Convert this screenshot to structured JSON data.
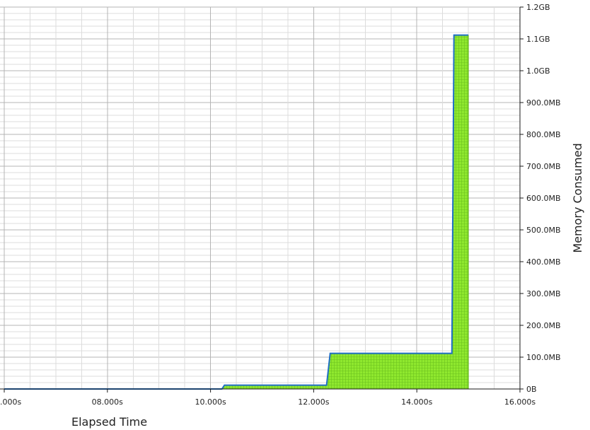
{
  "chart_data": {
    "type": "area",
    "xlabel": "Elapsed Time",
    "ylabel": "Memory Consumed",
    "x_ticks": [
      {
        "value": 6,
        "label": ".000s"
      },
      {
        "value": 8,
        "label": "08.000s"
      },
      {
        "value": 10,
        "label": "10.000s"
      },
      {
        "value": 12,
        "label": "12.000s"
      },
      {
        "value": 14,
        "label": "14.000s"
      },
      {
        "value": 16,
        "label": "16.000s"
      }
    ],
    "y_ticks": [
      {
        "value": 0,
        "label": "0B"
      },
      {
        "value": 100,
        "label": "100.0MB"
      },
      {
        "value": 200,
        "label": "200.0MB"
      },
      {
        "value": 300,
        "label": "300.0MB"
      },
      {
        "value": 400,
        "label": "400.0MB"
      },
      {
        "value": 500,
        "label": "500.0MB"
      },
      {
        "value": 600,
        "label": "600.0MB"
      },
      {
        "value": 700,
        "label": "700.0MB"
      },
      {
        "value": 800,
        "label": "800.0MB"
      },
      {
        "value": 900,
        "label": "900.0MB"
      },
      {
        "value": 1000,
        "label": "1.0GB"
      },
      {
        "value": 1100,
        "label": "1.1GB"
      },
      {
        "value": 1200,
        "label": "1.2GB"
      }
    ],
    "xlim": [
      6,
      16
    ],
    "ylim": [
      0,
      1200
    ],
    "y_unit": "MB",
    "grid": true,
    "series": [
      {
        "x": [
          6.0,
          10.22,
          10.27,
          12.25,
          12.32,
          14.68,
          14.72,
          15.0
        ],
        "y": [
          0,
          0,
          12,
          12,
          112,
          112,
          1112,
          1112
        ]
      }
    ],
    "colors": {
      "fill": "#8fe82e",
      "line": "#1f6fc4",
      "grid_major": "#b4b4b4",
      "grid_minor": "#dcdcdc",
      "axis": "#1a1a1a"
    }
  }
}
